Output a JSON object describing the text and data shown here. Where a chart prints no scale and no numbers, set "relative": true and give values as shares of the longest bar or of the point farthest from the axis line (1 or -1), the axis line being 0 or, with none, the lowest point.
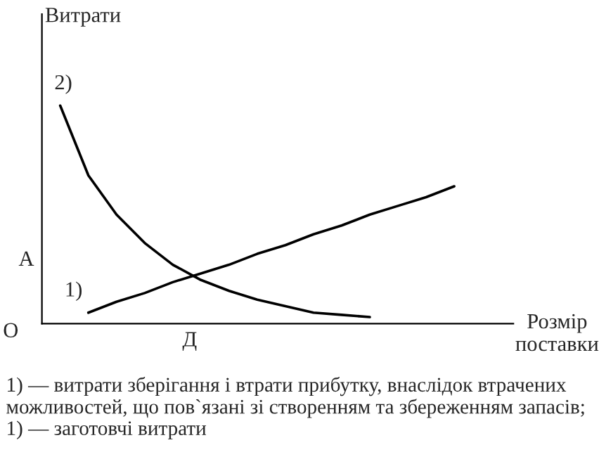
{
  "chart_data": {
    "type": "line",
    "relative": true,
    "ylabel": "Витрати",
    "xlabel": "Розмір\nпоставки",
    "categories": [
      null,
      null,
      null,
      null,
      null,
      null,
      null,
      null,
      null,
      null,
      null,
      null,
      null,
      null,
      null
    ],
    "series": [
      {
        "name": "1)",
        "color": "#000000",
        "values": [
          null,
          0.05,
          0.1,
          0.14,
          0.19,
          0.23,
          0.27,
          0.32,
          0.36,
          0.41,
          0.45,
          0.5,
          0.54,
          0.58,
          0.63
        ]
      },
      {
        "name": "2)",
        "color": "#000000",
        "values": [
          1.0,
          0.68,
          0.5,
          0.37,
          0.27,
          0.2,
          0.15,
          0.11,
          0.08,
          0.05,
          0.04,
          0.03,
          null,
          null,
          null
        ]
      }
    ],
    "annotations": [
      "О",
      "А",
      "Д",
      "1) — витрати зберігання і втрати прибутку, внаслідок втрачених можливостей, що пов`язані зі створенням та збереженням запасів; 1) — заготовчі витрати"
    ],
    "grid": false,
    "marker": "none",
    "line_style": "solid"
  }
}
